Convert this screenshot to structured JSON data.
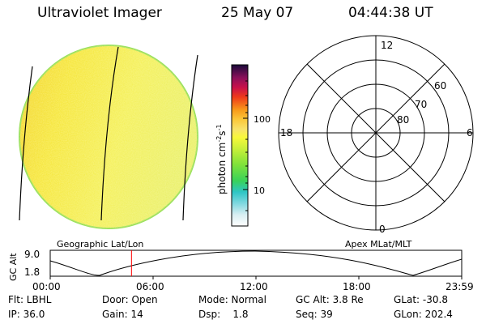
{
  "header": {
    "instrument": "Ultraviolet Imager",
    "date": "25 May 07",
    "time": "04:44:38 UT"
  },
  "colorbar": {
    "unit_label": "photon cm",
    "unit_exp1": "-2",
    "unit_mid": "s",
    "unit_exp2": "-1",
    "tick_100": "100",
    "tick_10": "10"
  },
  "polar_plot": {
    "mlt_top": "12",
    "mlt_left": "18",
    "mlt_right": "6",
    "mlt_bottom": "0",
    "lat_60": "60",
    "lat_70": "70",
    "lat_80": "80"
  },
  "timeline": {
    "left_caption": "Geographic Lat/Lon",
    "right_caption": "Apex MLat/MLT",
    "axis_label": "GC Alt",
    "y_top": "9.0",
    "y_bottom": "1.8",
    "times": [
      "00:00",
      "06:00",
      "12:00",
      "18:00",
      "23:59"
    ],
    "cursor_time_hours": 4.74
  },
  "info": {
    "filter_label": "Flt: LBHL",
    "door_label": "Door: Open",
    "mode_label": "Mode: Normal",
    "gcalt_label": "GC Alt: 3.8 Re",
    "glat_label": "GLat: -30.8",
    "ip_label": "IP: 36.0",
    "gain_label": "Gain: 14",
    "dsp_label": "Dsp:    1.8",
    "seq_label": "Seq: 39",
    "glon_label": "GLon: 202.4"
  },
  "colors": {
    "cursor": "#ff0000",
    "disk_edge": "#9be05a"
  }
}
